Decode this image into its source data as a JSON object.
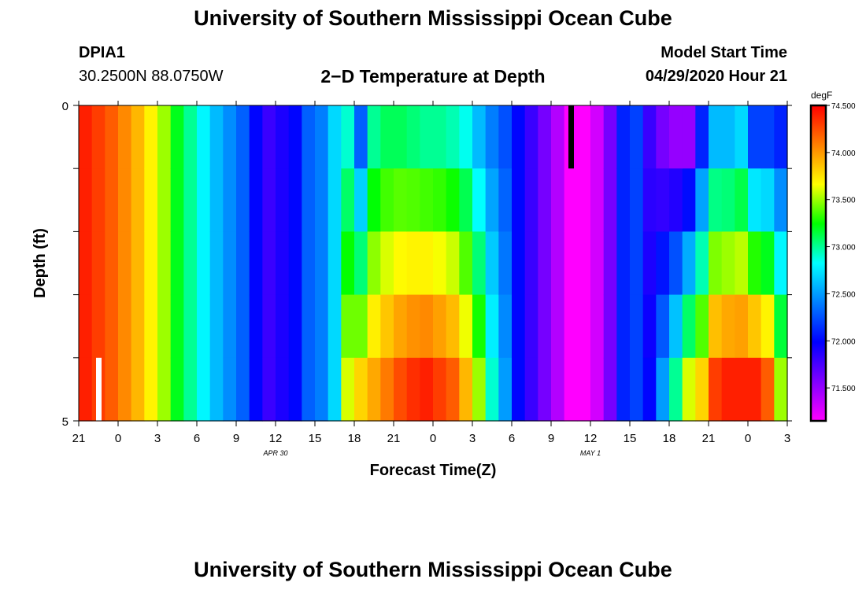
{
  "page_title": "University of Southern Mississippi Ocean Cube",
  "footer_title": "University of Southern Mississippi Ocean Cube",
  "station_id": "DPIA1",
  "station_coords": "30.2500N 88.0750W",
  "plot_title": "2−D Temperature at Depth",
  "model_start_label": "Model Start Time",
  "model_start_value": "04/29/2020 Hour 21",
  "colors": {
    "scale_stops": [
      "#ff00ff",
      "#8000ff",
      "#0000ff",
      "#0080ff",
      "#00ffff",
      "#00ff00",
      "#ffff00",
      "#ff8000",
      "#ff0000"
    ],
    "marker_black": "#000000",
    "marker_white": "#ffffff"
  },
  "chart_data": {
    "type": "heatmap",
    "title": "2−D Temperature at Depth",
    "xlabel": "Forecast Time(Z)",
    "ylabel": "Depth (ft)",
    "x_tick_labels": [
      "21",
      "0",
      "3",
      "6",
      "9",
      "12",
      "15",
      "18",
      "21",
      "0",
      "3",
      "6",
      "9",
      "12",
      "15",
      "18",
      "21",
      "0",
      "3"
    ],
    "x_hours_from_start": [
      0,
      3,
      6,
      9,
      12,
      15,
      18,
      21,
      24,
      27,
      30,
      33,
      36,
      39,
      42,
      45,
      48,
      51,
      54
    ],
    "date_labels": [
      {
        "label": "APR 30",
        "hours_from_start": 15
      },
      {
        "label": "MAY 1",
        "hours_from_start": 39
      }
    ],
    "y_tick_labels": [
      "0",
      "5"
    ],
    "ylim": [
      0,
      5
    ],
    "xlim_hours": [
      0,
      54
    ],
    "depth_layers_ft": [
      0,
      1,
      2,
      3,
      4,
      5
    ],
    "colorbar": {
      "unit": "degF",
      "range": [
        71.15,
        74.5
      ],
      "tick_labels": [
        "74.500",
        "74.000",
        "73.500",
        "73.000",
        "72.500",
        "72.000",
        "71.500"
      ],
      "tick_values": [
        74.5,
        74.0,
        73.5,
        73.0,
        72.5,
        72.0,
        71.5
      ]
    },
    "column_hours": [
      0,
      1,
      2,
      3,
      4,
      5,
      6,
      7,
      8,
      9,
      10,
      11,
      12,
      13,
      14,
      15,
      16,
      17,
      18,
      19,
      20,
      21,
      22,
      23,
      24,
      25,
      26,
      27,
      28,
      29,
      30,
      31,
      32,
      33,
      34,
      35,
      36,
      37,
      38,
      39,
      40,
      41,
      42,
      43,
      44,
      45,
      46,
      47,
      48,
      49,
      50,
      51,
      52,
      53
    ],
    "surface_temps_degF": [
      74.4,
      74.3,
      74.2,
      74.05,
      73.9,
      73.7,
      73.5,
      73.2,
      73.0,
      72.8,
      72.6,
      72.45,
      72.3,
      72.0,
      71.8,
      71.9,
      72.0,
      72.3,
      72.4,
      72.7,
      72.9,
      72.3,
      73.0,
      73.1,
      73.1,
      73.05,
      73.0,
      73.0,
      72.95,
      72.85,
      72.6,
      72.4,
      72.25,
      72.0,
      71.8,
      71.6,
      71.4,
      71.15,
      71.15,
      71.3,
      71.6,
      72.1,
      72.2,
      71.8,
      71.6,
      71.5,
      71.5,
      72.1,
      72.6,
      72.6,
      72.7,
      72.2,
      72.2,
      72.1
    ],
    "bottom_temps_degF": [
      74.4,
      74.3,
      74.2,
      74.05,
      73.9,
      73.7,
      73.5,
      73.2,
      73.0,
      72.8,
      72.6,
      72.45,
      72.3,
      72.0,
      71.8,
      71.9,
      72.0,
      72.3,
      72.4,
      72.7,
      73.6,
      73.8,
      73.95,
      74.1,
      74.25,
      74.35,
      74.4,
      74.3,
      74.2,
      73.9,
      73.5,
      72.9,
      72.5,
      72.0,
      71.8,
      71.6,
      71.4,
      71.15,
      71.15,
      71.3,
      71.6,
      72.1,
      72.2,
      72.0,
      72.5,
      73.0,
      73.6,
      73.8,
      74.3,
      74.4,
      74.4,
      74.4,
      74.2,
      73.5
    ],
    "deep_start_column": 18,
    "shallow_end_column": 27,
    "deep_restart_column": 41,
    "uniform_columns_before": 18,
    "black_marker_hours": [
      37.5
    ],
    "white_marker_hours": [
      1.5
    ]
  }
}
